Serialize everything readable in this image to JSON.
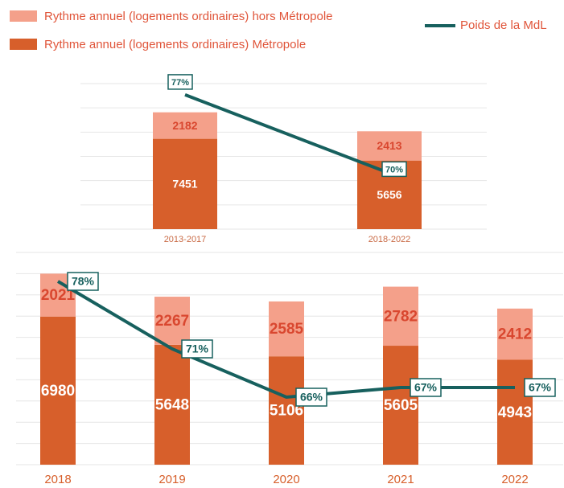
{
  "chart_data": [
    {
      "type": "stacked_bar_line",
      "categories": [
        "2013-2017",
        "2018-2022"
      ],
      "series": [
        {
          "name": "Rythme annuel (logements ordinaires) hors Métropole",
          "color": "#f4a08a",
          "values": [
            2182,
            2413
          ]
        },
        {
          "name": "Rythme annuel (logements ordinaires) Métropole",
          "color": "#d75f2b",
          "values": [
            7451,
            5656
          ]
        },
        {
          "name": "Poids de la MdL",
          "color": "#17605e",
          "axis": "y2",
          "values": [
            77,
            70
          ],
          "value_labels": [
            "77%",
            "70%"
          ]
        }
      ],
      "ylim": [
        0,
        12000
      ],
      "yticks": [
        0,
        2000,
        4000,
        6000,
        8000,
        10000,
        12000
      ],
      "y2lim": [
        65,
        78
      ],
      "grid": true
    },
    {
      "type": "stacked_bar_line",
      "categories": [
        "2018",
        "2019",
        "2020",
        "2021",
        "2022"
      ],
      "series": [
        {
          "color": "#f4a08a",
          "values": [
            2021,
            2267,
            2585,
            2782,
            2412
          ]
        },
        {
          "color": "#d75f2b",
          "values": [
            6980,
            5648,
            5106,
            5605,
            4943
          ]
        },
        {
          "color": "#17605e",
          "axis": "y2",
          "values": [
            78,
            71,
            66,
            67,
            67
          ],
          "value_labels": [
            "78%",
            "71%",
            "66%",
            "67%",
            "67%"
          ]
        }
      ],
      "ylim": [
        0,
        10000
      ],
      "yticks": [
        0,
        1000,
        2000,
        3000,
        4000,
        5000,
        6000,
        7000,
        8000,
        9000,
        10000
      ],
      "y2lim": [
        59,
        81
      ],
      "grid": true
    }
  ]
}
